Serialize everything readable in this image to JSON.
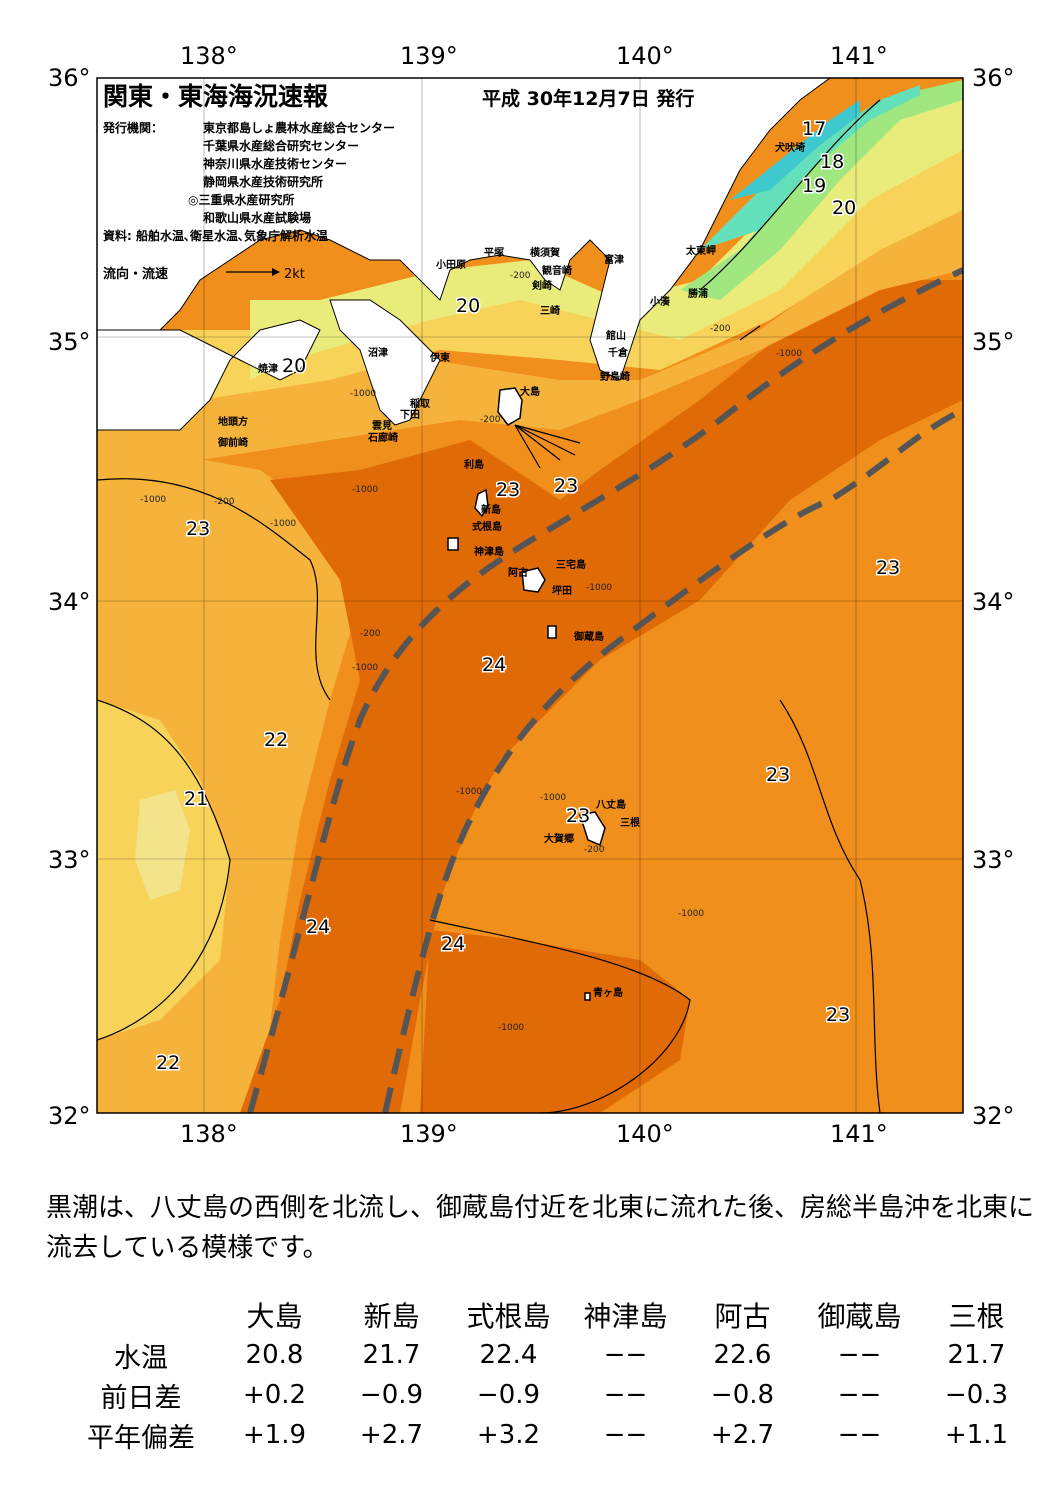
{
  "header": {
    "title": "関東・東海海況速報",
    "date": "平成 30年12月7日 発行",
    "issuer_label": "発行機関：",
    "issuers": [
      "東京都島しょ農林水産総合センター",
      "千葉県水産総合研究センター",
      "神奈川県水産技術センター",
      "静岡県水産技術研究所",
      "◎三重県水産研究所",
      "和歌山県水産試験場"
    ],
    "source": "資料: 船舶水温､衛星水温､気象庁解析水温",
    "flow_legend": "流向・流速",
    "flow_scale": "2kt"
  },
  "axes": {
    "lon_labels": [
      "138°",
      "139°",
      "140°",
      "141°"
    ],
    "lat_labels": [
      "36°",
      "35°",
      "34°",
      "33°",
      "32°"
    ]
  },
  "colors": {
    "cold_17": "#3fc9cf",
    "cool_18": "#63e0ba",
    "c19": "#9fe77e",
    "c20": "#e9ec7a",
    "c21": "#f8d35a",
    "c22": "#f5b33c",
    "c23": "#f08f1c",
    "c24": "#e06a06",
    "land": "#ffffff",
    "kuroshio_axis": "#555555"
  },
  "map_labels": {
    "isotherms": [
      "17",
      "18",
      "19",
      "20",
      "20",
      "20",
      "23",
      "23",
      "23",
      "23",
      "24",
      "22",
      "21",
      "23",
      "23",
      "24",
      "24",
      "22",
      "23"
    ],
    "places": [
      "犬吠埼",
      "太東岬",
      "勝浦",
      "小湊",
      "館山",
      "千倉",
      "野島崎",
      "富津",
      "平塚",
      "横須賀",
      "観音崎",
      "剣崎",
      "三崎",
      "小田原",
      "沼津",
      "伊東",
      "焼津",
      "稲取",
      "下田",
      "雲見",
      "石廊崎",
      "地頭方",
      "御前崎",
      "大島",
      "利島",
      "新島",
      "式根島",
      "神津島",
      "三宅島",
      "阿古",
      "坪田",
      "御蔵島",
      "八丈島",
      "三根",
      "大賀郷",
      "青ヶ島"
    ],
    "depths": [
      "-200",
      "-1000",
      "-200",
      "-1000",
      "-200",
      "-1000",
      "-200",
      "-1000",
      "-1000",
      "-200",
      "-1000",
      "-1000",
      "-1000",
      "-200",
      "-1000",
      "-1000",
      "-1000"
    ]
  },
  "summary": "黒潮は、八丈島の西側を北流し、御蔵島付近を北東に流れた後、房総半島沖を北東に流去している模様です。",
  "table": {
    "stations": [
      "大島",
      "新島",
      "式根島",
      "神津島",
      "阿古",
      "御蔵島",
      "三根"
    ],
    "rows": [
      {
        "label": "水温",
        "values": [
          "20.8",
          "21.7",
          "22.4",
          "−−",
          "22.6",
          "−−",
          "21.7"
        ]
      },
      {
        "label": "前日差",
        "values": [
          "+0.2",
          "−0.9",
          "−0.9",
          "−−",
          "−0.8",
          "−−",
          "−0.3"
        ]
      },
      {
        "label": "平年偏差",
        "values": [
          "+1.9",
          "+2.7",
          "+3.2",
          "−−",
          "+2.7",
          "−−",
          "+1.1"
        ]
      }
    ]
  }
}
